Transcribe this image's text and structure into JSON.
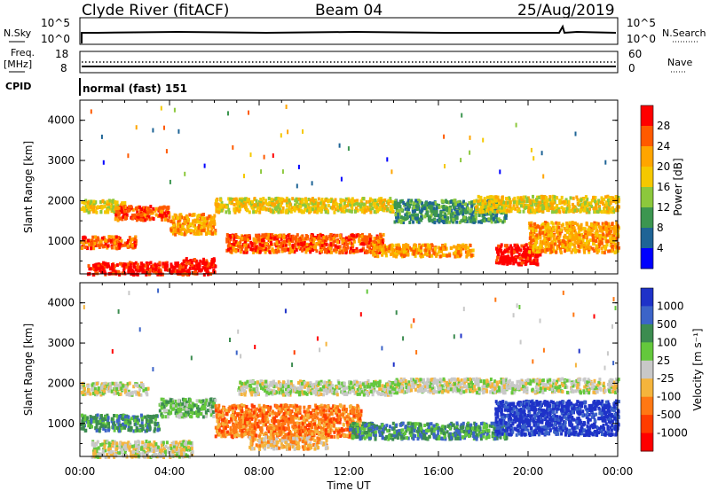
{
  "header": {
    "station": "Clyde River (fitACF)",
    "beam": "Beam 04",
    "date": "25/Aug/2019"
  },
  "nsky_panel": {
    "left_label": "N.Sky",
    "left_ticks": [
      "10^5",
      "10^0"
    ],
    "right_label": "N.Search",
    "right_ticks": [
      "10^5",
      "10^0"
    ]
  },
  "freq_panel": {
    "left_label_1": "Freq.",
    "left_label_2": "[MHz]",
    "left_ticks": [
      "18",
      "8"
    ],
    "right_label": "Nave",
    "right_ticks": [
      "60",
      "0"
    ]
  },
  "cpid_panel": {
    "label": "CPID",
    "mode": "normal (fast) 151"
  },
  "chart_data": [
    {
      "type": "heatmap",
      "name": "Power",
      "ylabel": "Slant Range [km]",
      "xlabel": "Time UT",
      "x_ticks": [
        "00:00",
        "04:00",
        "08:00",
        "12:00",
        "16:00",
        "20:00",
        "00:00"
      ],
      "x_range_hours": [
        0,
        24
      ],
      "y_ticks": [
        1000,
        2000,
        3000,
        4000
      ],
      "ylim": [
        180,
        4500
      ],
      "colorbar": {
        "label": "Power [dB]",
        "ticks": [
          "28",
          "24",
          "20",
          "16",
          "12",
          "8",
          "4"
        ],
        "colors": [
          "#ff0000",
          "#ff5a00",
          "#ffa500",
          "#f5c800",
          "#8cc83c",
          "#3c9650",
          "#1e6496",
          "#0000ff"
        ]
      },
      "scatter_bands": [
        {
          "t0": 0.0,
          "t1": 2.0,
          "r0": 1750,
          "r1": 2050,
          "level": 3
        },
        {
          "t0": 0.0,
          "t1": 2.5,
          "r0": 850,
          "r1": 1150,
          "level": 1
        },
        {
          "t0": 0.3,
          "t1": 4.5,
          "r0": 200,
          "r1": 500,
          "level": 0
        },
        {
          "t0": 1.5,
          "t1": 4.0,
          "r0": 1550,
          "r1": 1900,
          "level": 1
        },
        {
          "t0": 4.0,
          "t1": 6.0,
          "r0": 1200,
          "r1": 1700,
          "level": 2
        },
        {
          "t0": 4.5,
          "t1": 6.0,
          "r0": 200,
          "r1": 600,
          "level": 0
        },
        {
          "t0": 6.0,
          "t1": 14.0,
          "r0": 1750,
          "r1": 2100,
          "level": 3
        },
        {
          "t0": 6.5,
          "t1": 13.5,
          "r0": 750,
          "r1": 1200,
          "level": 1
        },
        {
          "t0": 13.0,
          "t1": 17.5,
          "r0": 650,
          "r1": 950,
          "level": 2
        },
        {
          "t0": 14.0,
          "t1": 19.0,
          "r0": 1500,
          "r1": 2050,
          "level": 5
        },
        {
          "t0": 17.5,
          "t1": 24.0,
          "r0": 1750,
          "r1": 2150,
          "level": 3
        },
        {
          "t0": 18.5,
          "t1": 20.5,
          "r0": 450,
          "r1": 950,
          "level": 0
        },
        {
          "t0": 20.0,
          "t1": 24.0,
          "r0": 750,
          "r1": 1500,
          "level": 2
        }
      ]
    },
    {
      "type": "heatmap",
      "name": "Velocity",
      "ylabel": "Slant Range [km]",
      "xlabel": "Time UT",
      "x_ticks": [
        "00:00",
        "04:00",
        "08:00",
        "12:00",
        "16:00",
        "20:00",
        "00:00"
      ],
      "x_range_hours": [
        0,
        24
      ],
      "y_ticks": [
        1000,
        2000,
        3000,
        4000
      ],
      "ylim": [
        180,
        4500
      ],
      "colorbar": {
        "label": "Velocity [m s⁻¹]",
        "ticks": [
          "1000",
          "500",
          "100",
          "25",
          "-25",
          "-100",
          "-500",
          "-1000"
        ],
        "colors": [
          "#1e32c8",
          "#3c64c8",
          "#3c8c50",
          "#64c83c",
          "#c8c8c8",
          "#f5b43c",
          "#ff7814",
          "#ff3c00",
          "#ff0000"
        ]
      },
      "scatter_bands": [
        {
          "t0": 0.0,
          "t1": 3.0,
          "r0": 1750,
          "r1": 2050,
          "level": 4
        },
        {
          "t0": 0.0,
          "t1": 3.5,
          "r0": 850,
          "r1": 1250,
          "level": 2
        },
        {
          "t0": 0.5,
          "t1": 5.0,
          "r0": 200,
          "r1": 600,
          "level": 4
        },
        {
          "t0": 3.5,
          "t1": 6.0,
          "r0": 1200,
          "r1": 1650,
          "level": 3
        },
        {
          "t0": 6.0,
          "t1": 12.5,
          "r0": 700,
          "r1": 1500,
          "level": 6
        },
        {
          "t0": 7.0,
          "t1": 14.0,
          "r0": 1750,
          "r1": 2100,
          "level": 4
        },
        {
          "t0": 12.0,
          "t1": 19.0,
          "r0": 650,
          "r1": 1050,
          "level": 2
        },
        {
          "t0": 14.0,
          "t1": 24.0,
          "r0": 1800,
          "r1": 2150,
          "level": 4
        },
        {
          "t0": 18.5,
          "t1": 24.0,
          "r0": 750,
          "r1": 1600,
          "level": 0
        },
        {
          "t0": 7.5,
          "t1": 11.0,
          "r0": 400,
          "r1": 700,
          "level": 5
        }
      ]
    }
  ]
}
